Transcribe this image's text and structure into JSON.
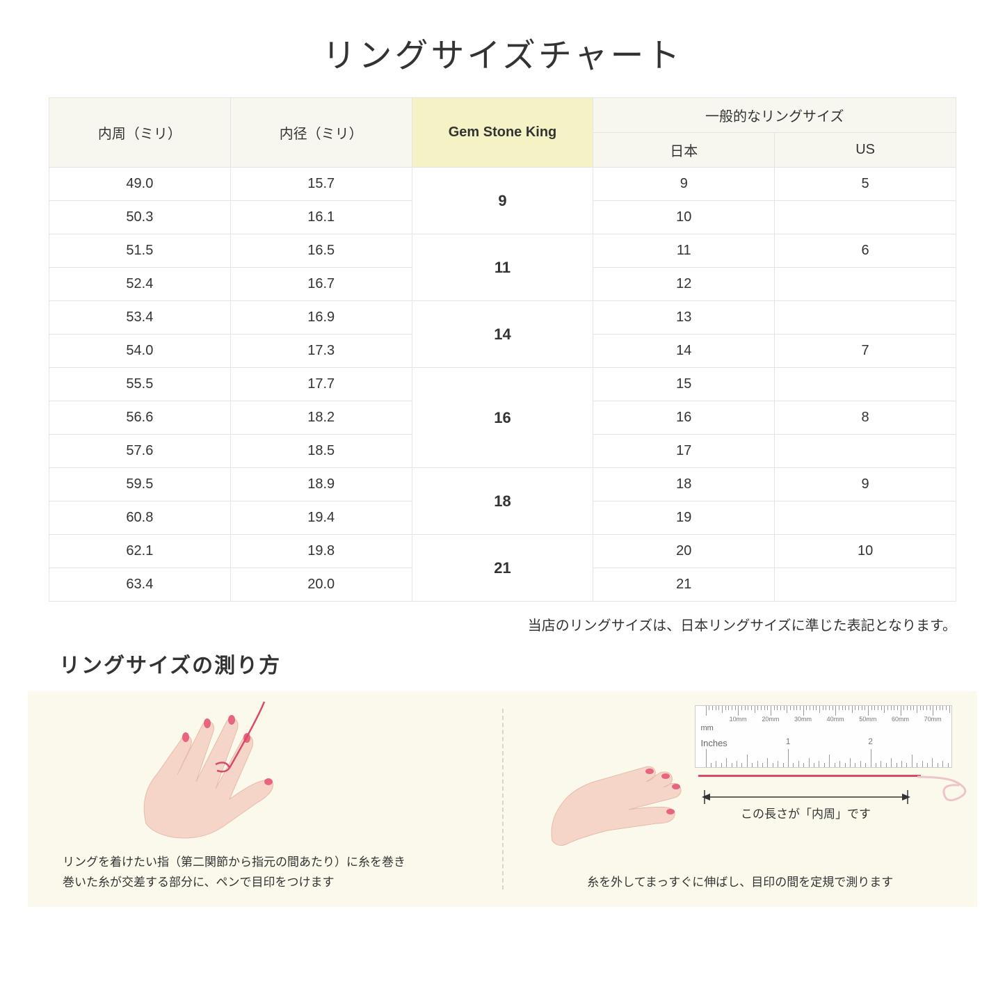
{
  "title": "リングサイズチャート",
  "table": {
    "headers": {
      "col1": "内周（ミリ）",
      "col2": "内径（ミリ）",
      "col3": "Gem Stone King",
      "col4_group": "一般的なリングサイズ",
      "col4a": "日本",
      "col4b": "US"
    },
    "groups": [
      {
        "gsk": "9",
        "rows": [
          {
            "c": "49.0",
            "d": "15.7",
            "jp": "9",
            "us": "5"
          },
          {
            "c": "50.3",
            "d": "16.1",
            "jp": "10",
            "us": ""
          }
        ]
      },
      {
        "gsk": "11",
        "rows": [
          {
            "c": "51.5",
            "d": "16.5",
            "jp": "11",
            "us": "6"
          },
          {
            "c": "52.4",
            "d": "16.7",
            "jp": "12",
            "us": ""
          }
        ]
      },
      {
        "gsk": "14",
        "rows": [
          {
            "c": "53.4",
            "d": "16.9",
            "jp": "13",
            "us": ""
          },
          {
            "c": "54.0",
            "d": "17.3",
            "jp": "14",
            "us": "7"
          }
        ]
      },
      {
        "gsk": "16",
        "rows": [
          {
            "c": "55.5",
            "d": "17.7",
            "jp": "15",
            "us": ""
          },
          {
            "c": "56.6",
            "d": "18.2",
            "jp": "16",
            "us": "8"
          },
          {
            "c": "57.6",
            "d": "18.5",
            "jp": "17",
            "us": ""
          }
        ]
      },
      {
        "gsk": "18",
        "rows": [
          {
            "c": "59.5",
            "d": "18.9",
            "jp": "18",
            "us": "9"
          },
          {
            "c": "60.8",
            "d": "19.4",
            "jp": "19",
            "us": ""
          }
        ]
      },
      {
        "gsk": "21",
        "rows": [
          {
            "c": "62.1",
            "d": "19.8",
            "jp": "20",
            "us": "10"
          },
          {
            "c": "63.4",
            "d": "20.0",
            "jp": "21",
            "us": ""
          }
        ]
      }
    ]
  },
  "note": "当店のリングサイズは、日本リングサイズに準じた表記となります。",
  "subtitle": "リングサイズの測り方",
  "howto": {
    "left_caption_line1": "リングを着けたい指（第二関節から指元の間あたり）に糸を巻き",
    "left_caption_line2": "巻いた糸が交差する部分に、ペンで目印をつけます",
    "right_caption": "糸を外してまっすぐに伸ばし、目印の間を定規で測ります",
    "arrow_label": "この長さが「内周」です",
    "ruler_mm_label": "mm",
    "ruler_in_label": "Inches",
    "ruler_mm_marks": [
      "10mm",
      "20mm",
      "30mm",
      "40mm",
      "50mm",
      "60mm",
      "70mm"
    ],
    "ruler_in_marks": [
      "1",
      "2"
    ]
  },
  "colors": {
    "header_bg": "#f7f7f0",
    "highlight_bg": "#f5f3c6",
    "border": "#e5e5e0",
    "howto_bg": "#fbf9ec",
    "skin": "#f5d5c8",
    "skin_shadow": "#e8baa8",
    "nail": "#e8657f",
    "thread": "#d94a66"
  }
}
